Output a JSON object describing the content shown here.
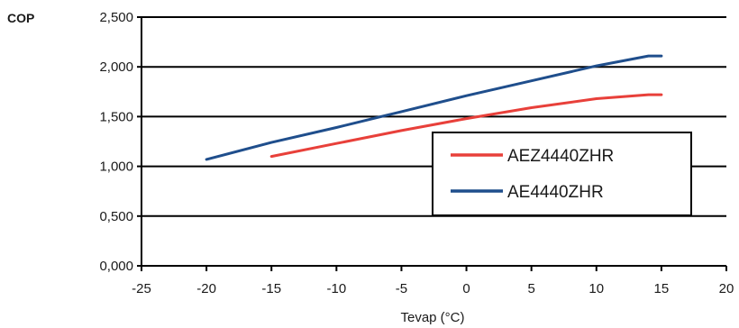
{
  "chart_data": {
    "type": "line",
    "title": "",
    "xlabel": "Tevap (°C)",
    "ylabel": "COP",
    "xlim": [
      -25,
      20
    ],
    "ylim": [
      0,
      2.5
    ],
    "x_ticks": [
      -25,
      -20,
      -15,
      -10,
      -5,
      0,
      5,
      10,
      15,
      20
    ],
    "x_tick_labels": [
      "-25",
      "-20",
      "-15",
      "-10",
      "-5",
      "0",
      "5",
      "10",
      "15",
      "20"
    ],
    "y_ticks": [
      0,
      0.5,
      1,
      1.5,
      2,
      2.5
    ],
    "y_tick_labels": [
      "0,000",
      "0,500",
      "1,000",
      "1,500",
      "2,000",
      "2,500"
    ],
    "grid": "horizontal",
    "legend_position": "center-right",
    "series": [
      {
        "name": "AEZ4440ZHR",
        "color": "#e8403a",
        "x": [
          -15,
          -10,
          -5,
          0,
          5,
          10,
          14,
          15
        ],
        "y": [
          1.1,
          1.23,
          1.36,
          1.48,
          1.59,
          1.68,
          1.72,
          1.72
        ]
      },
      {
        "name": "AE4440ZHR",
        "color": "#1f4e8c",
        "x": [
          -20,
          -15,
          -10,
          -5,
          0,
          5,
          10,
          14,
          15
        ],
        "y": [
          1.07,
          1.24,
          1.39,
          1.55,
          1.71,
          1.86,
          2.01,
          2.11,
          2.11
        ]
      }
    ]
  }
}
